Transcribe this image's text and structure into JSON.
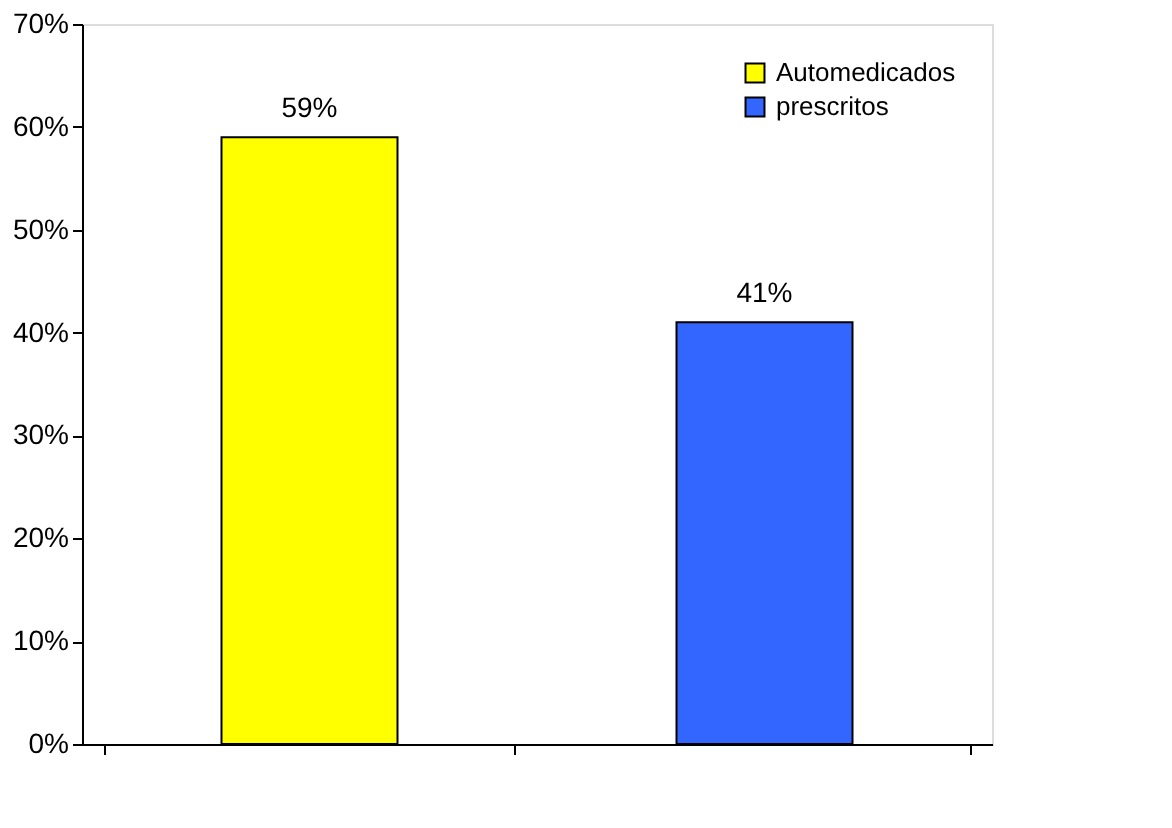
{
  "chart_data": {
    "type": "bar",
    "categories": [
      null,
      null
    ],
    "series": [
      {
        "name": "Automedicados",
        "color": "#ffff00",
        "values": [
          59,
          null
        ],
        "value_labels": [
          "59%",
          null
        ]
      },
      {
        "name": "prescritos",
        "color": "#3366ff",
        "values": [
          null,
          41
        ],
        "value_labels": [
          null,
          "41%"
        ]
      }
    ],
    "ylim": [
      0,
      70
    ],
    "yticks": [
      {
        "value": 0,
        "label": "0%"
      },
      {
        "value": 10,
        "label": "10%"
      },
      {
        "value": 20,
        "label": "20%"
      },
      {
        "value": 30,
        "label": "30%"
      },
      {
        "value": 40,
        "label": "40%"
      },
      {
        "value": 50,
        "label": "50%"
      },
      {
        "value": 60,
        "label": "60%"
      },
      {
        "value": 70,
        "label": "70%"
      }
    ],
    "tick_labels": "y",
    "grid": false,
    "legend": "top right"
  }
}
